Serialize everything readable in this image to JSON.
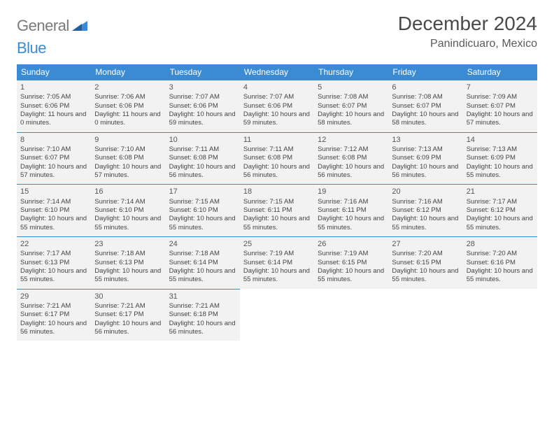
{
  "logo": {
    "word1": "General",
    "word2": "Blue"
  },
  "title": "December 2024",
  "subtitle": "Panindicuaro, Mexico",
  "colors": {
    "header_bg": "#3b8bd4",
    "header_fg": "#ffffff",
    "cell_bg": "#f2f2f2",
    "cell_border": "#3b8bd4",
    "text": "#444444",
    "title_color": "#4a4a4a",
    "logo_gray": "#7a7a7a",
    "logo_blue": "#3b8bd4"
  },
  "weekdays": [
    "Sunday",
    "Monday",
    "Tuesday",
    "Wednesday",
    "Thursday",
    "Friday",
    "Saturday"
  ],
  "days": [
    {
      "n": 1,
      "sr": "7:05 AM",
      "ss": "6:06 PM",
      "dl": "11 hours and 0 minutes."
    },
    {
      "n": 2,
      "sr": "7:06 AM",
      "ss": "6:06 PM",
      "dl": "11 hours and 0 minutes."
    },
    {
      "n": 3,
      "sr": "7:07 AM",
      "ss": "6:06 PM",
      "dl": "10 hours and 59 minutes."
    },
    {
      "n": 4,
      "sr": "7:07 AM",
      "ss": "6:06 PM",
      "dl": "10 hours and 59 minutes."
    },
    {
      "n": 5,
      "sr": "7:08 AM",
      "ss": "6:07 PM",
      "dl": "10 hours and 58 minutes."
    },
    {
      "n": 6,
      "sr": "7:08 AM",
      "ss": "6:07 PM",
      "dl": "10 hours and 58 minutes."
    },
    {
      "n": 7,
      "sr": "7:09 AM",
      "ss": "6:07 PM",
      "dl": "10 hours and 57 minutes."
    },
    {
      "n": 8,
      "sr": "7:10 AM",
      "ss": "6:07 PM",
      "dl": "10 hours and 57 minutes."
    },
    {
      "n": 9,
      "sr": "7:10 AM",
      "ss": "6:08 PM",
      "dl": "10 hours and 57 minutes."
    },
    {
      "n": 10,
      "sr": "7:11 AM",
      "ss": "6:08 PM",
      "dl": "10 hours and 56 minutes."
    },
    {
      "n": 11,
      "sr": "7:11 AM",
      "ss": "6:08 PM",
      "dl": "10 hours and 56 minutes."
    },
    {
      "n": 12,
      "sr": "7:12 AM",
      "ss": "6:08 PM",
      "dl": "10 hours and 56 minutes."
    },
    {
      "n": 13,
      "sr": "7:13 AM",
      "ss": "6:09 PM",
      "dl": "10 hours and 56 minutes."
    },
    {
      "n": 14,
      "sr": "7:13 AM",
      "ss": "6:09 PM",
      "dl": "10 hours and 55 minutes."
    },
    {
      "n": 15,
      "sr": "7:14 AM",
      "ss": "6:10 PM",
      "dl": "10 hours and 55 minutes."
    },
    {
      "n": 16,
      "sr": "7:14 AM",
      "ss": "6:10 PM",
      "dl": "10 hours and 55 minutes."
    },
    {
      "n": 17,
      "sr": "7:15 AM",
      "ss": "6:10 PM",
      "dl": "10 hours and 55 minutes."
    },
    {
      "n": 18,
      "sr": "7:15 AM",
      "ss": "6:11 PM",
      "dl": "10 hours and 55 minutes."
    },
    {
      "n": 19,
      "sr": "7:16 AM",
      "ss": "6:11 PM",
      "dl": "10 hours and 55 minutes."
    },
    {
      "n": 20,
      "sr": "7:16 AM",
      "ss": "6:12 PM",
      "dl": "10 hours and 55 minutes."
    },
    {
      "n": 21,
      "sr": "7:17 AM",
      "ss": "6:12 PM",
      "dl": "10 hours and 55 minutes."
    },
    {
      "n": 22,
      "sr": "7:17 AM",
      "ss": "6:13 PM",
      "dl": "10 hours and 55 minutes."
    },
    {
      "n": 23,
      "sr": "7:18 AM",
      "ss": "6:13 PM",
      "dl": "10 hours and 55 minutes."
    },
    {
      "n": 24,
      "sr": "7:18 AM",
      "ss": "6:14 PM",
      "dl": "10 hours and 55 minutes."
    },
    {
      "n": 25,
      "sr": "7:19 AM",
      "ss": "6:14 PM",
      "dl": "10 hours and 55 minutes."
    },
    {
      "n": 26,
      "sr": "7:19 AM",
      "ss": "6:15 PM",
      "dl": "10 hours and 55 minutes."
    },
    {
      "n": 27,
      "sr": "7:20 AM",
      "ss": "6:15 PM",
      "dl": "10 hours and 55 minutes."
    },
    {
      "n": 28,
      "sr": "7:20 AM",
      "ss": "6:16 PM",
      "dl": "10 hours and 55 minutes."
    },
    {
      "n": 29,
      "sr": "7:21 AM",
      "ss": "6:17 PM",
      "dl": "10 hours and 56 minutes."
    },
    {
      "n": 30,
      "sr": "7:21 AM",
      "ss": "6:17 PM",
      "dl": "10 hours and 56 minutes."
    },
    {
      "n": 31,
      "sr": "7:21 AM",
      "ss": "6:18 PM",
      "dl": "10 hours and 56 minutes."
    }
  ],
  "labels": {
    "sunrise": "Sunrise:",
    "sunset": "Sunset:",
    "daylight": "Daylight:"
  },
  "first_weekday_index": 0
}
